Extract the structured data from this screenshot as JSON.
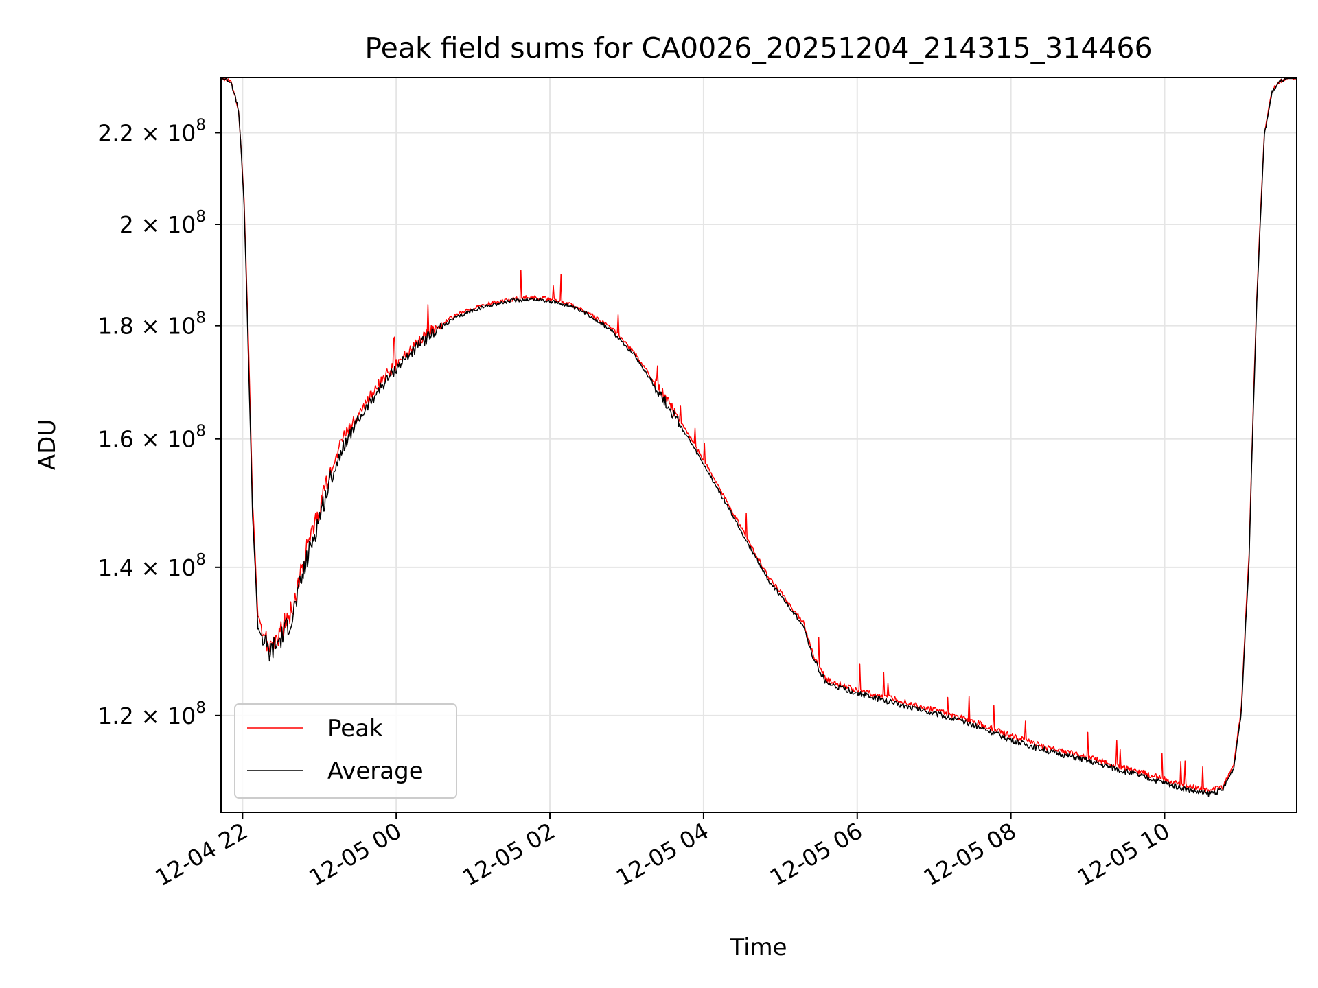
{
  "chart_data": {
    "type": "line",
    "title": "Peak field sums for CA0026_20251204_214315_314466",
    "xlabel": "Time",
    "ylabel": "ADU",
    "y_scale": "log",
    "ylim": [
      108500000,
      233000000
    ],
    "x_hours_range": [
      -2.28,
      11.72
    ],
    "grid": true,
    "legend_position": "lower-left",
    "x_ticks": [
      {
        "label": "12-04 22",
        "hour": -2
      },
      {
        "label": "12-05 00",
        "hour": 0
      },
      {
        "label": "12-05 02",
        "hour": 2
      },
      {
        "label": "12-05 04",
        "hour": 4
      },
      {
        "label": "12-05 06",
        "hour": 6
      },
      {
        "label": "12-05 08",
        "hour": 8
      },
      {
        "label": "12-05 10",
        "hour": 10
      }
    ],
    "y_ticks": [
      {
        "mantissa": "2.2",
        "value": 220000000
      },
      {
        "mantissa": "2",
        "value": 200000000
      },
      {
        "mantissa": "1.8",
        "value": 180000000
      },
      {
        "mantissa": "1.6",
        "value": 160000000
      },
      {
        "mantissa": "1.4",
        "value": 140000000
      },
      {
        "mantissa": "1.2",
        "value": 120000000
      }
    ],
    "tick_multiplier": "× 10",
    "tick_exponent": "8",
    "series": [
      {
        "name": "Peak",
        "color": "#ff0000",
        "x_hours": [
          -2.28,
          -2.15,
          -2.05,
          -1.98,
          -1.92,
          -1.87,
          -1.8,
          -1.65,
          -1.5,
          -1.35,
          -1.2,
          -1.05,
          -0.9,
          -0.7,
          -0.5,
          -0.25,
          0.0,
          0.25,
          0.5,
          0.75,
          1.0,
          1.25,
          1.5,
          1.7,
          1.9,
          2.2,
          2.5,
          2.8,
          3.1,
          3.4,
          3.7,
          4.0,
          4.3,
          4.6,
          4.85,
          5.0,
          5.15,
          5.3,
          5.42,
          5.6,
          6.0,
          6.5,
          7.0,
          7.5,
          8.0,
          8.5,
          9.0,
          9.5,
          10.0,
          10.3,
          10.55,
          10.75,
          10.9,
          11.0,
          11.1,
          11.2,
          11.3,
          11.4,
          11.5,
          11.6,
          11.72
        ],
        "values": [
          233000000,
          232000000,
          225000000,
          205000000,
          175000000,
          150000000,
          133000000,
          129000000,
          131000000,
          134000000,
          141000000,
          147000000,
          153000000,
          160000000,
          164000000,
          169000000,
          173000000,
          176500000,
          179500000,
          181800000,
          183300000,
          184400000,
          185000000,
          185400000,
          185300000,
          184400000,
          182500000,
          179500000,
          175000000,
          169000000,
          163000000,
          156500000,
          150000000,
          143500000,
          138500000,
          136500000,
          134200000,
          132200000,
          128000000,
          124500000,
          123200000,
          122000000,
          120700000,
          119300000,
          117500000,
          116000000,
          114900000,
          113600000,
          112300000,
          111500000,
          111000000,
          111300000,
          114000000,
          121000000,
          142000000,
          185000000,
          220000000,
          230000000,
          232000000,
          233000000,
          233000000
        ]
      },
      {
        "name": "Average",
        "color": "#000000",
        "x_hours": [
          -2.28,
          -2.15,
          -2.05,
          -1.98,
          -1.92,
          -1.87,
          -1.8,
          -1.65,
          -1.5,
          -1.35,
          -1.2,
          -1.05,
          -0.9,
          -0.7,
          -0.5,
          -0.25,
          0.0,
          0.25,
          0.5,
          0.75,
          1.0,
          1.25,
          1.5,
          1.7,
          1.9,
          2.2,
          2.5,
          2.8,
          3.1,
          3.4,
          3.7,
          4.0,
          4.3,
          4.6,
          4.85,
          5.0,
          5.15,
          5.3,
          5.42,
          5.6,
          6.0,
          6.5,
          7.0,
          7.5,
          8.0,
          8.5,
          9.0,
          9.5,
          10.0,
          10.3,
          10.55,
          10.75,
          10.9,
          11.0,
          11.1,
          11.2,
          11.3,
          11.4,
          11.5,
          11.6,
          11.72
        ],
        "values": [
          233000000,
          232000000,
          225000000,
          204000000,
          172000000,
          148000000,
          131500000,
          128000000,
          130000000,
          133000000,
          139500000,
          145500000,
          151500000,
          158500000,
          163000000,
          168000000,
          172200000,
          175800000,
          179000000,
          181300000,
          182900000,
          184000000,
          184700000,
          185000000,
          184900000,
          184000000,
          182100000,
          179100000,
          174600000,
          168300000,
          162200000,
          155800000,
          149400000,
          143000000,
          138000000,
          136000000,
          133800000,
          131800000,
          127500000,
          124000000,
          122800000,
          121500000,
          120300000,
          118900000,
          117000000,
          115600000,
          114500000,
          113200000,
          111900000,
          111100000,
          110600000,
          111000000,
          113600000,
          120500000,
          141000000,
          184000000,
          219500000,
          229500000,
          232000000,
          233000000,
          233000000
        ]
      }
    ]
  }
}
